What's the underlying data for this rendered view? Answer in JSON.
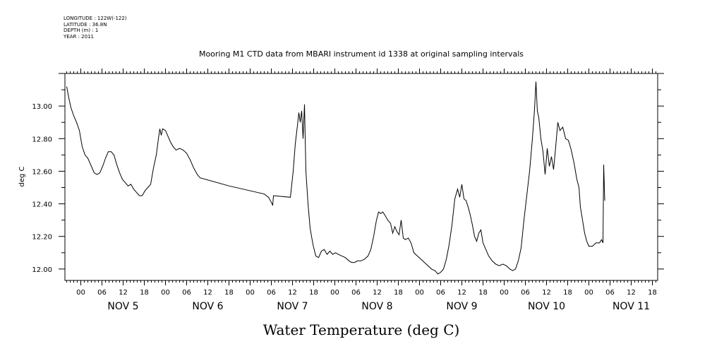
{
  "meta": {
    "longitude": "LONGITUDE : 122W(-122)",
    "latitude": "LATITUDE : 36.8N",
    "depth": "DEPTH (m) : 1",
    "year": "YEAR : 2011"
  },
  "chart_data": {
    "type": "line",
    "title": "Mooring M1 CTD data from MBARI instrument id 1338 at original sampling intervals",
    "xlabel": "Water Temperature (deg C)",
    "ylabel": "deg C",
    "x_unit": "hours since 2011-11-04 00:00",
    "xlim": [
      19.5,
      187.5
    ],
    "ylim": [
      11.93,
      13.2
    ],
    "yticks": [
      "12.00",
      "12.20",
      "12.40",
      "12.60",
      "12.80",
      "13.00"
    ],
    "xtick_hours": [
      "00",
      "06",
      "12",
      "18"
    ],
    "day_labels": [
      "NOV 5",
      "NOV 6",
      "NOV 7",
      "NOV 8",
      "NOV 9",
      "NOV 10",
      "NOV 11"
    ],
    "grid": false,
    "series": [
      {
        "color": "#000000",
        "points": [
          [
            20.0,
            13.12
          ],
          [
            20.6,
            13.05
          ],
          [
            21.2,
            12.99
          ],
          [
            22.0,
            12.94
          ],
          [
            22.8,
            12.9
          ],
          [
            23.6,
            12.85
          ],
          [
            24.4,
            12.75
          ],
          [
            25.2,
            12.7
          ],
          [
            26.0,
            12.68
          ],
          [
            27.0,
            12.63
          ],
          [
            27.8,
            12.59
          ],
          [
            28.6,
            12.58
          ],
          [
            29.4,
            12.59
          ],
          [
            30.2,
            12.63
          ],
          [
            31.0,
            12.68
          ],
          [
            31.8,
            12.72
          ],
          [
            32.6,
            12.72
          ],
          [
            33.4,
            12.7
          ],
          [
            34.2,
            12.64
          ],
          [
            35.0,
            12.59
          ],
          [
            35.8,
            12.55
          ],
          [
            36.6,
            12.53
          ],
          [
            37.4,
            12.51
          ],
          [
            38.2,
            12.52
          ],
          [
            39.0,
            12.49
          ],
          [
            39.8,
            12.47
          ],
          [
            40.6,
            12.45
          ],
          [
            41.4,
            12.45
          ],
          [
            42.2,
            12.48
          ],
          [
            43.0,
            12.5
          ],
          [
            43.8,
            12.52
          ],
          [
            44.6,
            12.62
          ],
          [
            45.4,
            12.7
          ],
          [
            46.0,
            12.8
          ],
          [
            46.4,
            12.86
          ],
          [
            46.8,
            12.82
          ],
          [
            47.2,
            12.86
          ],
          [
            48.0,
            12.85
          ],
          [
            48.6,
            12.82
          ],
          [
            49.4,
            12.78
          ],
          [
            50.2,
            12.75
          ],
          [
            51.0,
            12.73
          ],
          [
            52.0,
            12.74
          ],
          [
            53.0,
            12.73
          ],
          [
            54.0,
            12.71
          ],
          [
            55.0,
            12.67
          ],
          [
            56.0,
            12.62
          ],
          [
            57.0,
            12.58
          ],
          [
            57.8,
            12.56
          ],
          [
            66.0,
            12.51
          ],
          [
            76.0,
            12.46
          ],
          [
            77.2,
            12.44
          ],
          [
            78.0,
            12.41
          ],
          [
            78.4,
            12.39
          ],
          [
            78.6,
            12.45
          ],
          [
            83.4,
            12.44
          ],
          [
            84.2,
            12.6
          ],
          [
            84.8,
            12.77
          ],
          [
            85.4,
            12.88
          ],
          [
            85.8,
            12.96
          ],
          [
            86.2,
            12.9
          ],
          [
            86.6,
            12.97
          ],
          [
            87.0,
            12.8
          ],
          [
            87.4,
            13.01
          ],
          [
            87.8,
            12.6
          ],
          [
            88.4,
            12.4
          ],
          [
            89.0,
            12.25
          ],
          [
            89.8,
            12.15
          ],
          [
            90.6,
            12.08
          ],
          [
            91.4,
            12.07
          ],
          [
            92.2,
            12.11
          ],
          [
            93.0,
            12.12
          ],
          [
            93.8,
            12.09
          ],
          [
            94.6,
            12.11
          ],
          [
            95.4,
            12.09
          ],
          [
            96.2,
            12.1
          ],
          [
            97.0,
            12.09
          ],
          [
            98.0,
            12.08
          ],
          [
            99.0,
            12.07
          ],
          [
            100.0,
            12.05
          ],
          [
            100.8,
            12.04
          ],
          [
            101.6,
            12.04
          ],
          [
            102.4,
            12.05
          ],
          [
            103.4,
            12.05
          ],
          [
            104.4,
            12.06
          ],
          [
            105.4,
            12.08
          ],
          [
            106.2,
            12.12
          ],
          [
            107.0,
            12.2
          ],
          [
            107.8,
            12.3
          ],
          [
            108.4,
            12.35
          ],
          [
            109.0,
            12.34
          ],
          [
            109.6,
            12.35
          ],
          [
            110.2,
            12.33
          ],
          [
            111.0,
            12.3
          ],
          [
            111.8,
            12.28
          ],
          [
            112.4,
            12.22
          ],
          [
            113.0,
            12.26
          ],
          [
            113.6,
            12.23
          ],
          [
            114.2,
            12.21
          ],
          [
            114.8,
            12.3
          ],
          [
            115.4,
            12.19
          ],
          [
            116.0,
            12.18
          ],
          [
            116.8,
            12.19
          ],
          [
            117.6,
            12.16
          ],
          [
            118.4,
            12.1
          ],
          [
            119.4,
            12.08
          ],
          [
            120.4,
            12.06
          ],
          [
            121.4,
            12.04
          ],
          [
            122.4,
            12.02
          ],
          [
            123.4,
            12.0
          ],
          [
            124.4,
            11.99
          ],
          [
            125.2,
            11.97
          ],
          [
            126.0,
            11.98
          ],
          [
            126.8,
            12.0
          ],
          [
            127.6,
            12.06
          ],
          [
            128.4,
            12.15
          ],
          [
            129.2,
            12.27
          ],
          [
            130.0,
            12.43
          ],
          [
            130.8,
            12.49
          ],
          [
            131.4,
            12.44
          ],
          [
            132.0,
            12.52
          ],
          [
            132.6,
            12.43
          ],
          [
            133.2,
            12.42
          ],
          [
            133.8,
            12.38
          ],
          [
            134.4,
            12.33
          ],
          [
            135.0,
            12.27
          ],
          [
            135.6,
            12.2
          ],
          [
            136.2,
            12.17
          ],
          [
            136.8,
            12.22
          ],
          [
            137.4,
            12.24
          ],
          [
            138.0,
            12.16
          ],
          [
            138.8,
            12.12
          ],
          [
            139.6,
            12.08
          ],
          [
            140.6,
            12.05
          ],
          [
            141.6,
            12.03
          ],
          [
            142.6,
            12.02
          ],
          [
            143.6,
            12.03
          ],
          [
            144.6,
            12.02
          ],
          [
            145.6,
            12.0
          ],
          [
            146.4,
            11.99
          ],
          [
            147.2,
            12.0
          ],
          [
            148.0,
            12.05
          ],
          [
            148.8,
            12.13
          ],
          [
            149.6,
            12.3
          ],
          [
            150.4,
            12.45
          ],
          [
            151.2,
            12.6
          ],
          [
            152.0,
            12.8
          ],
          [
            152.6,
            12.98
          ],
          [
            153.0,
            13.15
          ],
          [
            153.4,
            12.97
          ],
          [
            153.8,
            12.93
          ],
          [
            154.4,
            12.8
          ],
          [
            155.0,
            12.72
          ],
          [
            155.6,
            12.58
          ],
          [
            156.2,
            12.74
          ],
          [
            156.8,
            12.63
          ],
          [
            157.4,
            12.69
          ],
          [
            158.0,
            12.61
          ],
          [
            158.6,
            12.75
          ],
          [
            159.2,
            12.9
          ],
          [
            159.8,
            12.85
          ],
          [
            160.6,
            12.87
          ],
          [
            161.4,
            12.8
          ],
          [
            162.2,
            12.79
          ],
          [
            163.0,
            12.73
          ],
          [
            163.8,
            12.65
          ],
          [
            164.6,
            12.55
          ],
          [
            165.2,
            12.5
          ],
          [
            165.6,
            12.38
          ],
          [
            166.2,
            12.3
          ],
          [
            166.8,
            12.22
          ],
          [
            167.4,
            12.17
          ],
          [
            168.0,
            12.14
          ],
          [
            169.0,
            12.14
          ],
          [
            170.0,
            12.16
          ],
          [
            171.0,
            12.16
          ],
          [
            171.6,
            12.18
          ],
          [
            172.0,
            12.16
          ],
          [
            172.2,
            12.64
          ],
          [
            172.5,
            12.42
          ]
        ]
      }
    ]
  }
}
